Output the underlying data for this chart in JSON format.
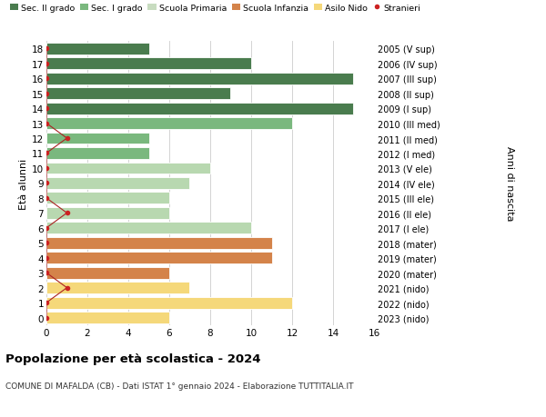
{
  "ages": [
    18,
    17,
    16,
    15,
    14,
    13,
    12,
    11,
    10,
    9,
    8,
    7,
    6,
    5,
    4,
    3,
    2,
    1,
    0
  ],
  "right_labels": [
    "2005 (V sup)",
    "2006 (IV sup)",
    "2007 (III sup)",
    "2008 (II sup)",
    "2009 (I sup)",
    "2010 (III med)",
    "2011 (II med)",
    "2012 (I med)",
    "2013 (V ele)",
    "2014 (IV ele)",
    "2015 (III ele)",
    "2016 (II ele)",
    "2017 (I ele)",
    "2018 (mater)",
    "2019 (mater)",
    "2020 (mater)",
    "2021 (nido)",
    "2022 (nido)",
    "2023 (nido)"
  ],
  "bar_values": [
    5,
    10,
    15,
    9,
    15,
    12,
    5,
    5,
    8,
    7,
    6,
    6,
    10,
    11,
    11,
    6,
    7,
    12,
    6
  ],
  "bar_colors": [
    "#4a7c4e",
    "#4a7c4e",
    "#4a7c4e",
    "#4a7c4e",
    "#4a7c4e",
    "#7ab87e",
    "#7ab87e",
    "#7ab87e",
    "#b8d8b0",
    "#b8d8b0",
    "#b8d8b0",
    "#b8d8b0",
    "#b8d8b0",
    "#d4834a",
    "#d4834a",
    "#d4834a",
    "#f5d87a",
    "#f5d87a",
    "#f5d87a"
  ],
  "stranieri_values": [
    0,
    0,
    0,
    0,
    0,
    0,
    1,
    0,
    0,
    0,
    0,
    1,
    0,
    0,
    0,
    0,
    1,
    0,
    0
  ],
  "legend_labels": [
    "Sec. II grado",
    "Sec. I grado",
    "Scuola Primaria",
    "Scuola Infanzia",
    "Asilo Nido",
    "Stranieri"
  ],
  "legend_colors": [
    "#4a7c4e",
    "#7ab87e",
    "#c8dcc0",
    "#d4834a",
    "#f5d87a",
    "#cc2222"
  ],
  "title": "Popolazione per età scolastica - 2024",
  "subtitle": "COMUNE DI MAFALDA (CB) - Dati ISTAT 1° gennaio 2024 - Elaborazione TUTTITALIA.IT",
  "ylabel_left": "Età alunni",
  "ylabel_right": "Anni di nascita",
  "xlim": [
    0,
    16
  ],
  "xticks": [
    0,
    2,
    4,
    6,
    8,
    10,
    12,
    14,
    16
  ],
  "background_color": "#ffffff",
  "grid_color": "#cccccc"
}
